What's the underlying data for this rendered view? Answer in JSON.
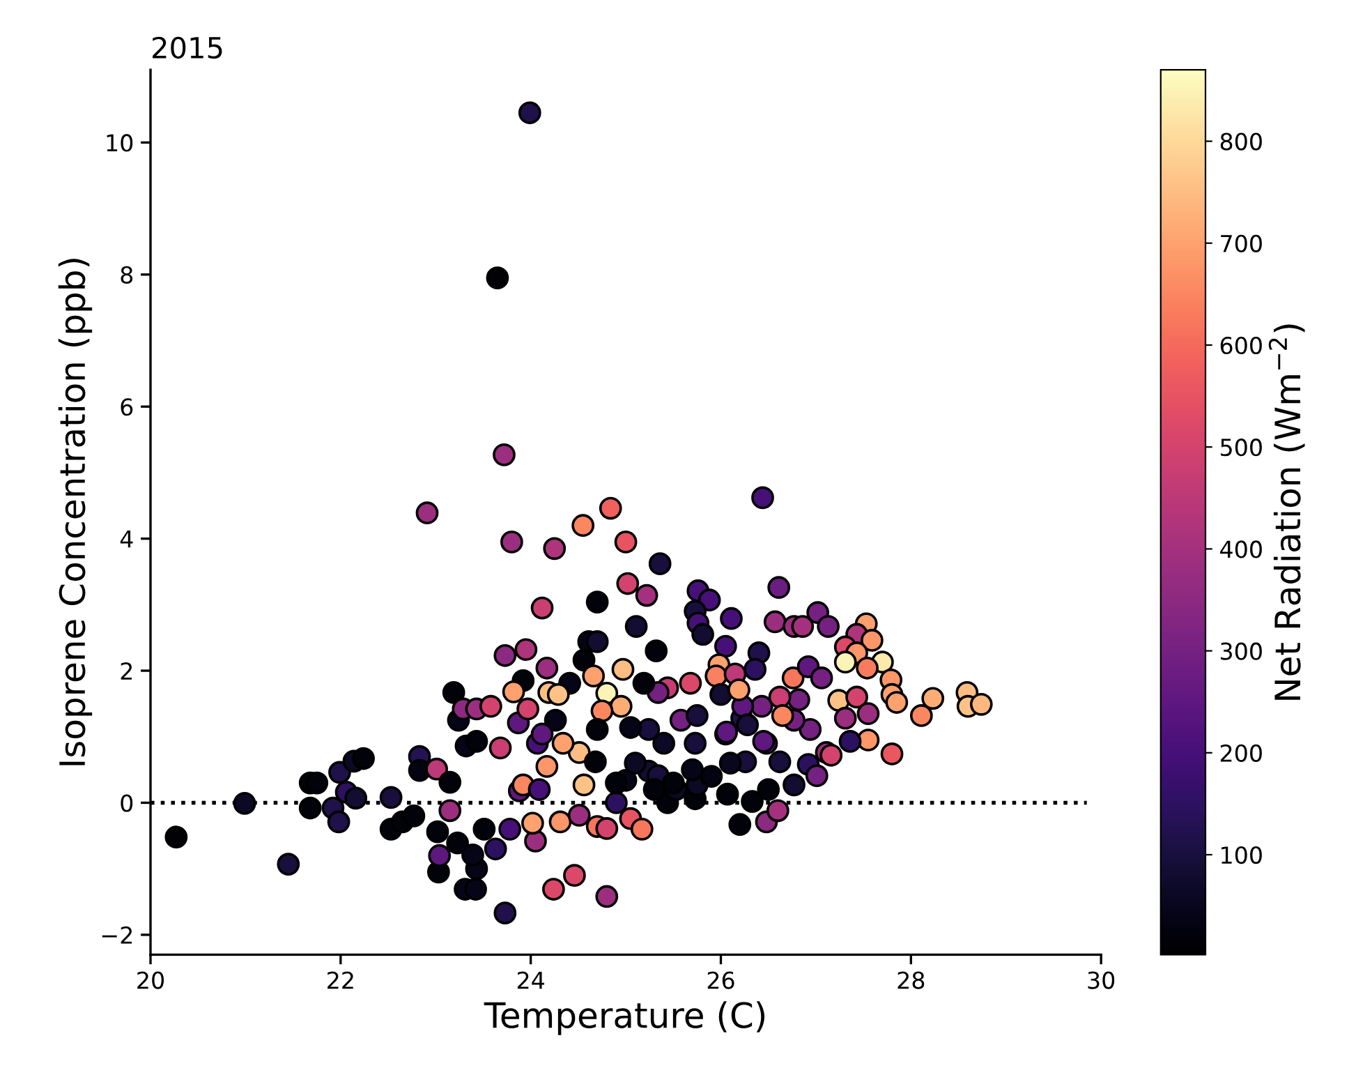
{
  "chart_data": {
    "type": "scatter",
    "title": "2015",
    "xlabel": "Temperature (C)",
    "ylabel": "Isoprene Concentration (ppb)",
    "clabel": "Net Radiation (Wm$^{−2}$)",
    "xlim": [
      20,
      30
    ],
    "xticks": [
      20,
      22,
      24,
      26,
      28,
      30
    ],
    "ylim": [
      -2.3,
      11.1
    ],
    "yticks": [
      {
        "value": -2,
        "label": "−2"
      },
      0,
      2,
      4,
      6,
      8,
      10
    ],
    "clim": [
      2,
      870
    ],
    "cticks": [
      100,
      200,
      300,
      400,
      500,
      600,
      700,
      800
    ],
    "grid": false,
    "marker": "circle",
    "ref_lines": [
      {
        "axis": "y",
        "value": 0,
        "line_style": "dotted",
        "color": "#000000"
      }
    ],
    "x": [
      23.99,
      23.65,
      23.72,
      20.27,
      20.99,
      21.45,
      21.68,
      21.75,
      21.68,
      21.99,
      22.06,
      22.14,
      22.24,
      21.92,
      21.98,
      22.16,
      22.53,
      22.53,
      22.65,
      22.77,
      22.83,
      22.83,
      23.01,
      22.91,
      23.15,
      23.02,
      23.23,
      23.03,
      23.04,
      23.19,
      23.24,
      23.32,
      23.43,
      23.29,
      23.43,
      23.58,
      23.15,
      23.31,
      23.42,
      23.43,
      23.39,
      23.51,
      23.73,
      23.63,
      23.78,
      23.73,
      23.95,
      23.8,
      23.68,
      23.88,
      23.92,
      23.87,
      23.82,
      23.97,
      24.05,
      24.02,
      24.07,
      24.12,
      24.17,
      24.25,
      24.24,
      24.46,
      24.8,
      24.55,
      24.84,
      25.0,
      25.02,
      25.22,
      25.36,
      24.7,
      25.11,
      25.32,
      24.61,
      24.7,
      24.56,
      24.97,
      24.66,
      24.8,
      24.95,
      24.75,
      24.41,
      24.19,
      24.29,
      24.26,
      24.51,
      24.56,
      24.68,
      24.7,
      24.12,
      24.34,
      23.92,
      24.17,
      24.09,
      24.31,
      24.51,
      24.7,
      24.8,
      25.05,
      25.17,
      24.9,
      25.0,
      25.24,
      25.44,
      25.34,
      25.44,
      25.68,
      25.58,
      25.24,
      25.05,
      25.34,
      25.19,
      25.73,
      25.73,
      25.53,
      25.76,
      25.88,
      25.73,
      25.76,
      25.81,
      26.11,
      26.05,
      26.2,
      26.07,
      25.98,
      25.95,
      26.0,
      26.05,
      26.15,
      26.22,
      26.44,
      26.61,
      26.57,
      26.77,
      26.86,
      27.02,
      27.13,
      27.53,
      27.43,
      27.59,
      27.31,
      27.43,
      27.7,
      27.31,
      27.54,
      27.79,
      27.24,
      27.8,
      27.85,
      28.23,
      28.11,
      28.59,
      28.6,
      28.74,
      27.8,
      27.55,
      27.43,
      27.55,
      27.31,
      27.36,
      27.11,
      26.92,
      26.94,
      26.82,
      26.76,
      26.92,
      27.06,
      26.77,
      26.62,
      26.77,
      26.48,
      26.48,
      26.6,
      26.33,
      26.43,
      26.4,
      26.36,
      26.23,
      26.06,
      26.28,
      26.45,
      26.26,
      25.75,
      25.75,
      26.19,
      26.62,
      27.01,
      27.16,
      26.65,
      26.5,
      25.5,
      25.7,
      25.3,
      25.1,
      24.9,
      25.9,
      26.1,
      25.4
    ],
    "values": [
      10.45,
      7.95,
      5.27,
      -0.52,
      -0.01,
      -0.93,
      0.3,
      0.3,
      -0.08,
      0.46,
      0.16,
      0.63,
      0.67,
      -0.08,
      -0.29,
      0.07,
      0.08,
      -0.4,
      -0.29,
      -0.2,
      0.7,
      0.49,
      0.51,
      4.39,
      -0.12,
      -0.44,
      -0.61,
      -1.05,
      -0.8,
      1.67,
      1.25,
      0.86,
      0.93,
      1.42,
      1.42,
      1.46,
      0.31,
      -1.31,
      -1.31,
      -1.0,
      -0.79,
      -0.4,
      -1.67,
      -0.7,
      -0.4,
      2.23,
      2.32,
      3.95,
      0.83,
      0.18,
      1.85,
      1.21,
      1.68,
      1.42,
      -0.58,
      -0.31,
      0.9,
      2.95,
      2.04,
      3.85,
      -1.31,
      -1.1,
      -1.42,
      4.2,
      4.46,
      3.95,
      3.32,
      3.14,
      3.62,
      3.04,
      2.67,
      2.3,
      2.44,
      2.44,
      2.16,
      2.02,
      1.92,
      1.66,
      1.46,
      1.39,
      1.81,
      1.67,
      1.64,
      1.25,
      0.76,
      0.27,
      0.62,
      1.11,
      1.04,
      0.9,
      0.27,
      0.55,
      0.2,
      -0.29,
      -0.19,
      -0.36,
      -0.39,
      -0.24,
      -0.4,
      0.0,
      0.34,
      0.48,
      0.0,
      0.41,
      1.74,
      1.81,
      1.25,
      1.11,
      1.14,
      1.67,
      1.81,
      0.9,
      0.06,
      0.2,
      3.21,
      3.07,
      2.9,
      2.72,
      2.55,
      2.79,
      2.37,
      -0.33,
      0.13,
      2.09,
      1.92,
      1.64,
      1.04,
      1.95,
      1.28,
      4.62,
      3.26,
      2.74,
      2.67,
      2.67,
      2.88,
      2.67,
      2.71,
      2.55,
      2.46,
      2.36,
      2.27,
      2.13,
      2.13,
      2.04,
      1.86,
      1.55,
      1.64,
      1.52,
      1.58,
      1.32,
      1.67,
      1.46,
      1.49,
      0.74,
      0.95,
      1.6,
      1.35,
      1.28,
      0.93,
      0.76,
      0.58,
      1.11,
      1.56,
      1.89,
      2.06,
      1.89,
      1.25,
      0.62,
      0.27,
      0.9,
      -0.29,
      -0.12,
      0.02,
      1.46,
      2.27,
      2.02,
      1.46,
      1.07,
      1.18,
      0.93,
      0.62,
      1.32,
      0.27,
      1.71,
      1.6,
      0.41,
      0.72,
      1.32,
      0.2,
      0.3,
      0.5,
      0.2,
      0.6,
      0.3,
      0.4,
      0.6,
      0.9
    ],
    "cvalues": [
      120,
      10,
      380,
      10,
      60,
      100,
      20,
      20,
      20,
      120,
      150,
      60,
      20,
      120,
      120,
      80,
      100,
      20,
      20,
      20,
      130,
      30,
      450,
      380,
      380,
      20,
      20,
      20,
      250,
      20,
      40,
      40,
      20,
      350,
      380,
      500,
      20,
      40,
      40,
      40,
      40,
      20,
      120,
      150,
      200,
      350,
      420,
      380,
      480,
      250,
      20,
      250,
      700,
      500,
      380,
      700,
      200,
      480,
      380,
      420,
      520,
      520,
      380,
      650,
      580,
      550,
      500,
      400,
      100,
      20,
      80,
      20,
      40,
      80,
      20,
      750,
      700,
      850,
      720,
      650,
      40,
      750,
      760,
      40,
      750,
      760,
      20,
      20,
      250,
      700,
      650,
      680,
      200,
      680,
      380,
      620,
      500,
      550,
      620,
      150,
      40,
      80,
      20,
      100,
      470,
      520,
      300,
      100,
      40,
      300,
      20,
      100,
      20,
      60,
      200,
      200,
      100,
      200,
      80,
      200,
      200,
      20,
      20,
      700,
      640,
      80,
      300,
      450,
      120,
      200,
      280,
      380,
      380,
      400,
      300,
      300,
      700,
      420,
      680,
      520,
      680,
      830,
      850,
      630,
      680,
      760,
      700,
      700,
      720,
      650,
      750,
      760,
      740,
      560,
      680,
      500,
      380,
      380,
      150,
      380,
      150,
      300,
      300,
      620,
      250,
      300,
      300,
      100,
      80,
      250,
      350,
      400,
      20,
      300,
      120,
      150,
      250,
      250,
      100,
      250,
      100,
      100,
      60,
      700,
      480,
      300,
      500,
      650,
      20,
      20,
      40,
      20,
      60,
      20,
      30,
      50,
      60
    ]
  }
}
